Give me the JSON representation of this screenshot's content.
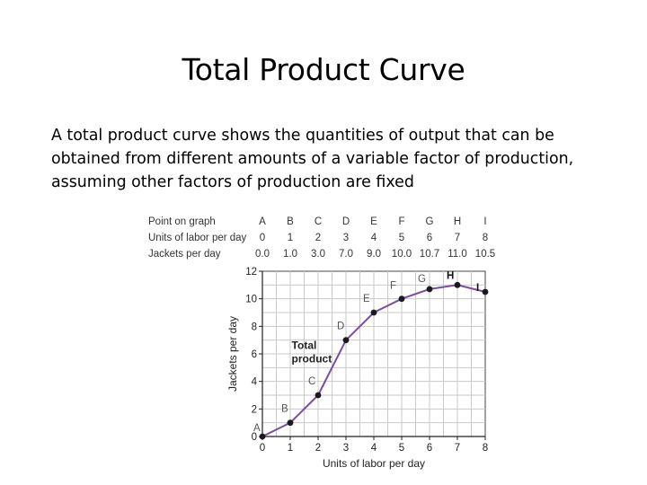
{
  "slide": {
    "title": "Total Product Curve",
    "body": "A total product curve shows the quantities of output that can be obtained from different amounts of a variable factor of production, assuming other factors of production are fixed"
  },
  "table": {
    "row_labels": [
      "Point on graph",
      "Units of labor per day",
      "Jackets per day"
    ],
    "points": [
      "A",
      "B",
      "C",
      "D",
      "E",
      "F",
      "G",
      "H",
      "I"
    ],
    "labor": [
      "0",
      "1",
      "2",
      "3",
      "4",
      "5",
      "6",
      "7",
      "8"
    ],
    "jackets": [
      "0.0",
      "1.0",
      "3.0",
      "7.0",
      "9.0",
      "10.0",
      "10.7",
      "11.0",
      "10.5"
    ]
  },
  "chart_data": {
    "type": "line",
    "title": "",
    "xlabel": "Units of labor per day",
    "ylabel": "Jackets per day",
    "xlim": [
      0,
      8
    ],
    "ylim": [
      0,
      12
    ],
    "x_ticks": [
      0,
      1,
      2,
      3,
      4,
      5,
      6,
      7,
      8
    ],
    "y_ticks": [
      0,
      2,
      4,
      6,
      8,
      10,
      12
    ],
    "grid": true,
    "curve_label": "Total product",
    "series": [
      {
        "x": [
          0,
          1,
          2,
          3,
          4,
          5,
          6,
          7,
          8
        ],
        "y": [
          0,
          1,
          3,
          7,
          9,
          10,
          10.7,
          11,
          10.5
        ],
        "point_labels": [
          "A",
          "B",
          "C",
          "D",
          "E",
          "F",
          "G",
          "H",
          "I"
        ]
      }
    ],
    "colors": {
      "line": "#7b4fa0",
      "grid": "#c9c9c9",
      "marker": "#1a1a1a",
      "label": "#555555"
    }
  }
}
